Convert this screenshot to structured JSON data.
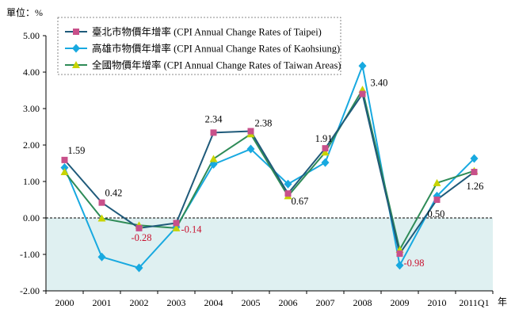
{
  "chart_data": {
    "type": "line",
    "ylabel": "單位：%",
    "xunit": "年",
    "categories": [
      "2000",
      "2001",
      "2002",
      "2003",
      "2004",
      "2005",
      "2006",
      "2007",
      "2008",
      "2009",
      "2010",
      "2011Q1"
    ],
    "ylim": [
      -2.0,
      5.0
    ],
    "yticks": [
      "5.00",
      "4.00",
      "3.00",
      "2.00",
      "1.00",
      "0.00",
      "-1.00",
      "-2.00"
    ],
    "grid": false,
    "legend_position": "top-left",
    "series": [
      {
        "name": "臺北市物價年增率 (CPI Annual Change Rates of Taipei)",
        "color": "#1f5a7a",
        "marker": "square",
        "marker_color": "#c8508a",
        "values": [
          1.59,
          0.42,
          -0.28,
          -0.14,
          2.34,
          2.38,
          0.67,
          1.91,
          3.4,
          -0.98,
          0.5,
          1.26
        ]
      },
      {
        "name": "高雄市物價年增率 (CPI Annual Change Rates of Kaohsiung)",
        "color": "#18a9e0",
        "marker": "diamond",
        "marker_color": "#18a9e0",
        "values": [
          1.38,
          -1.07,
          -1.37,
          -0.25,
          1.47,
          1.89,
          0.93,
          1.52,
          4.17,
          -1.3,
          0.6,
          1.63
        ]
      },
      {
        "name": "全國物價年增率 (CPI Annual Change Rates of Taiwan Areas)",
        "color": "#2e8b57",
        "marker": "triangle",
        "marker_color": "#c8d400",
        "values": [
          1.26,
          -0.01,
          -0.2,
          -0.28,
          1.62,
          2.3,
          0.6,
          1.8,
          3.52,
          -0.87,
          0.96,
          1.29
        ]
      }
    ],
    "data_labels": [
      {
        "text": "1.59",
        "cat": 0,
        "value": 1.59,
        "color": "#000000"
      },
      {
        "text": "0.42",
        "cat": 1,
        "value": 0.42,
        "color": "#000000"
      },
      {
        "text": "-0.28",
        "cat": 2,
        "value": -0.28,
        "color": "#c8102e"
      },
      {
        "text": "-0.14",
        "cat": 3,
        "value": -0.14,
        "color": "#c8102e"
      },
      {
        "text": "2.34",
        "cat": 4,
        "value": 2.34,
        "color": "#000000"
      },
      {
        "text": "2.38",
        "cat": 5,
        "value": 2.38,
        "color": "#000000"
      },
      {
        "text": "0.67",
        "cat": 6,
        "value": 0.67,
        "color": "#000000"
      },
      {
        "text": "1.91",
        "cat": 7,
        "value": 1.91,
        "color": "#000000"
      },
      {
        "text": "3.40",
        "cat": 8,
        "value": 3.4,
        "color": "#000000"
      },
      {
        "text": "-0.98",
        "cat": 9,
        "value": -0.98,
        "color": "#c8102e"
      },
      {
        "text": "0.50",
        "cat": 10,
        "value": 0.5,
        "color": "#000000"
      },
      {
        "text": "1.26",
        "cat": 11,
        "value": 1.26,
        "color": "#000000"
      }
    ],
    "negative_region_color": "#dff0f1"
  }
}
